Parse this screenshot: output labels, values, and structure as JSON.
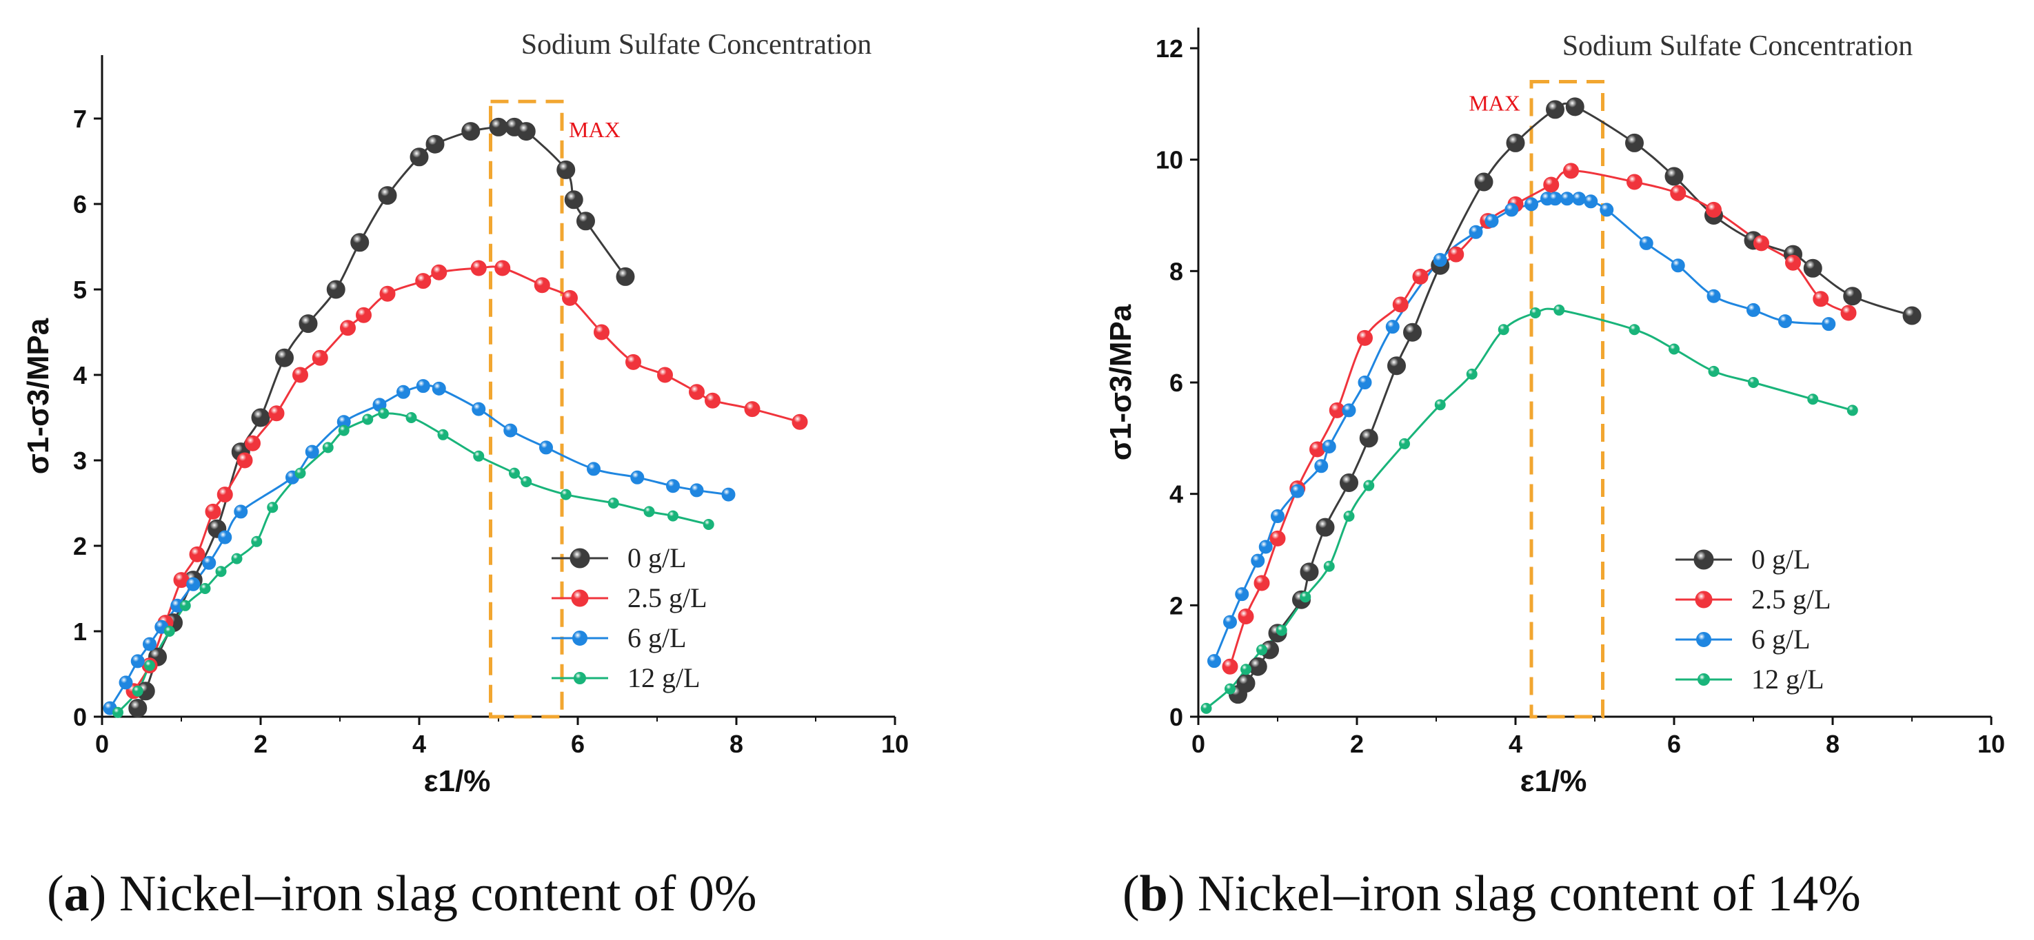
{
  "colors": {
    "s0": "#3c3c3c",
    "s25": "#f0343c",
    "s6": "#1f86e0",
    "s12": "#19b47a",
    "highlight": "#f2a630",
    "max_text": "#e8141a"
  },
  "chart_data": [
    {
      "type": "line",
      "panel_letter": "a",
      "caption": "Nickel–iron slag content of 0%",
      "title": "Sodium Sulfate Concentration",
      "xlabel": "ε1/%",
      "ylabel": "σ1-σ3/MPa",
      "xlim": [
        0,
        10
      ],
      "ylim": [
        0,
        7.5
      ],
      "xticks": [
        "0",
        "2",
        "4",
        "6",
        "8",
        "10"
      ],
      "yticks": [
        "0",
        "1",
        "2",
        "3",
        "4",
        "5",
        "6",
        "7"
      ],
      "grid": false,
      "legend_position": "lower-right",
      "annotation": {
        "text": "MAX",
        "x_range": [
          4.9,
          5.8
        ],
        "y_range": [
          0,
          7.2
        ]
      },
      "series": [
        {
          "name": "0 g/L",
          "color_key": "s0",
          "x": [
            0.45,
            0.55,
            0.7,
            0.9,
            1.15,
            1.45,
            1.75,
            2.0,
            2.3,
            2.6,
            2.95,
            3.25,
            3.6,
            4.0,
            4.2,
            4.65,
            5.0,
            5.2,
            5.35,
            5.85,
            5.95,
            6.1,
            6.6
          ],
          "y": [
            0.1,
            0.3,
            0.7,
            1.1,
            1.6,
            2.2,
            3.1,
            3.5,
            4.2,
            4.6,
            5.0,
            5.55,
            6.1,
            6.55,
            6.7,
            6.85,
            6.9,
            6.9,
            6.85,
            6.4,
            6.05,
            5.8,
            5.15
          ]
        },
        {
          "name": "2.5 g/L",
          "color_key": "s25",
          "x": [
            0.4,
            0.6,
            0.8,
            1.0,
            1.2,
            1.4,
            1.55,
            1.8,
            1.9,
            2.2,
            2.5,
            2.75,
            3.1,
            3.3,
            3.6,
            4.05,
            4.25,
            4.75,
            5.05,
            5.55,
            5.9,
            6.3,
            6.7,
            7.1,
            7.5,
            7.7,
            8.2,
            8.8
          ],
          "y": [
            0.3,
            0.6,
            1.1,
            1.6,
            1.9,
            2.4,
            2.6,
            3.0,
            3.2,
            3.55,
            4.0,
            4.2,
            4.55,
            4.7,
            4.95,
            5.1,
            5.2,
            5.25,
            5.25,
            5.05,
            4.9,
            4.5,
            4.15,
            4.0,
            3.8,
            3.7,
            3.6,
            3.45
          ]
        },
        {
          "name": "6 g/L",
          "color_key": "s6",
          "x": [
            0.1,
            0.3,
            0.45,
            0.6,
            0.75,
            0.95,
            1.15,
            1.35,
            1.55,
            1.75,
            2.4,
            2.65,
            3.05,
            3.5,
            3.8,
            4.05,
            4.25,
            4.75,
            5.15,
            5.6,
            6.2,
            6.75,
            7.2,
            7.5,
            7.9
          ],
          "y": [
            0.1,
            0.4,
            0.65,
            0.85,
            1.05,
            1.3,
            1.55,
            1.8,
            2.1,
            2.4,
            2.8,
            3.1,
            3.45,
            3.65,
            3.8,
            3.87,
            3.84,
            3.6,
            3.35,
            3.15,
            2.9,
            2.8,
            2.7,
            2.65,
            2.6
          ]
        },
        {
          "name": "12 g/L",
          "color_key": "s12",
          "x": [
            0.2,
            0.45,
            0.6,
            0.85,
            1.05,
            1.3,
            1.5,
            1.7,
            1.95,
            2.15,
            2.5,
            2.85,
            3.05,
            3.35,
            3.55,
            3.9,
            4.3,
            4.75,
            5.2,
            5.35,
            5.85,
            6.45,
            6.9,
            7.2,
            7.65
          ],
          "y": [
            0.05,
            0.3,
            0.6,
            1.0,
            1.3,
            1.5,
            1.7,
            1.85,
            2.05,
            2.45,
            2.85,
            3.15,
            3.35,
            3.48,
            3.55,
            3.5,
            3.3,
            3.05,
            2.85,
            2.75,
            2.6,
            2.5,
            2.4,
            2.35,
            2.25
          ]
        }
      ]
    },
    {
      "type": "line",
      "panel_letter": "b",
      "caption": "Nickel–iron slag content of 14%",
      "title": "Sodium Sulfate Concentration",
      "xlabel": "ε1/%",
      "ylabel": "σ1-σ3/MPa",
      "xlim": [
        0,
        10
      ],
      "ylim": [
        0,
        12
      ],
      "xticks": [
        "0",
        "2",
        "4",
        "6",
        "8",
        "10"
      ],
      "yticks": [
        "0",
        "2",
        "4",
        "6",
        "8",
        "10",
        "12"
      ],
      "grid": false,
      "legend_position": "lower-right",
      "annotation": {
        "text": "MAX",
        "x_range": [
          4.2,
          5.1
        ],
        "y_range": [
          0,
          11.4
        ]
      },
      "series": [
        {
          "name": "0 g/L",
          "color_key": "s0",
          "x": [
            0.5,
            0.6,
            0.75,
            0.9,
            1.0,
            1.3,
            1.4,
            1.6,
            1.9,
            2.15,
            2.5,
            2.7,
            3.05,
            3.6,
            4.0,
            4.5,
            4.75,
            5.5,
            6.0,
            6.5,
            7.0,
            7.5,
            7.75,
            8.25,
            9.0
          ],
          "y": [
            0.4,
            0.6,
            0.9,
            1.2,
            1.5,
            2.1,
            2.6,
            3.4,
            4.2,
            5.0,
            6.3,
            6.9,
            8.1,
            9.6,
            10.3,
            10.9,
            10.95,
            10.3,
            9.7,
            9.0,
            8.55,
            8.3,
            8.05,
            7.55,
            7.2
          ]
        },
        {
          "name": "2.5 g/L",
          "color_key": "s25",
          "x": [
            0.4,
            0.6,
            0.8,
            1.0,
            1.25,
            1.5,
            1.75,
            2.1,
            2.55,
            2.8,
            3.25,
            3.65,
            4.0,
            4.45,
            4.7,
            5.5,
            6.05,
            6.5,
            7.1,
            7.5,
            7.85,
            8.2
          ],
          "y": [
            0.9,
            1.8,
            2.4,
            3.2,
            4.1,
            4.8,
            5.5,
            6.8,
            7.4,
            7.9,
            8.3,
            8.9,
            9.2,
            9.55,
            9.8,
            9.6,
            9.4,
            9.1,
            8.5,
            8.15,
            7.5,
            7.25
          ]
        },
        {
          "name": "6 g/L",
          "color_key": "s6",
          "x": [
            0.2,
            0.4,
            0.55,
            0.75,
            0.85,
            1.0,
            1.25,
            1.55,
            1.65,
            1.9,
            2.1,
            2.45,
            3.05,
            3.5,
            3.7,
            3.95,
            4.2,
            4.4,
            4.5,
            4.65,
            4.8,
            4.95,
            5.15,
            5.65,
            6.05,
            6.5,
            7.0,
            7.4,
            7.95
          ],
          "y": [
            1.0,
            1.7,
            2.2,
            2.8,
            3.05,
            3.6,
            4.05,
            4.5,
            4.85,
            5.5,
            6.0,
            7.0,
            8.2,
            8.7,
            8.9,
            9.1,
            9.2,
            9.3,
            9.3,
            9.3,
            9.3,
            9.25,
            9.1,
            8.5,
            8.1,
            7.55,
            7.3,
            7.1,
            7.05
          ]
        },
        {
          "name": "12 g/L",
          "color_key": "s12",
          "x": [
            0.1,
            0.4,
            0.6,
            0.8,
            1.05,
            1.35,
            1.65,
            1.9,
            2.15,
            2.6,
            3.05,
            3.45,
            3.85,
            4.25,
            4.55,
            5.5,
            6.0,
            6.5,
            7.0,
            7.75,
            8.25
          ],
          "y": [
            0.15,
            0.5,
            0.85,
            1.2,
            1.55,
            2.15,
            2.7,
            3.6,
            4.15,
            4.9,
            5.6,
            6.15,
            6.95,
            7.25,
            7.3,
            6.95,
            6.6,
            6.2,
            6.0,
            5.7,
            5.5
          ]
        }
      ]
    }
  ]
}
